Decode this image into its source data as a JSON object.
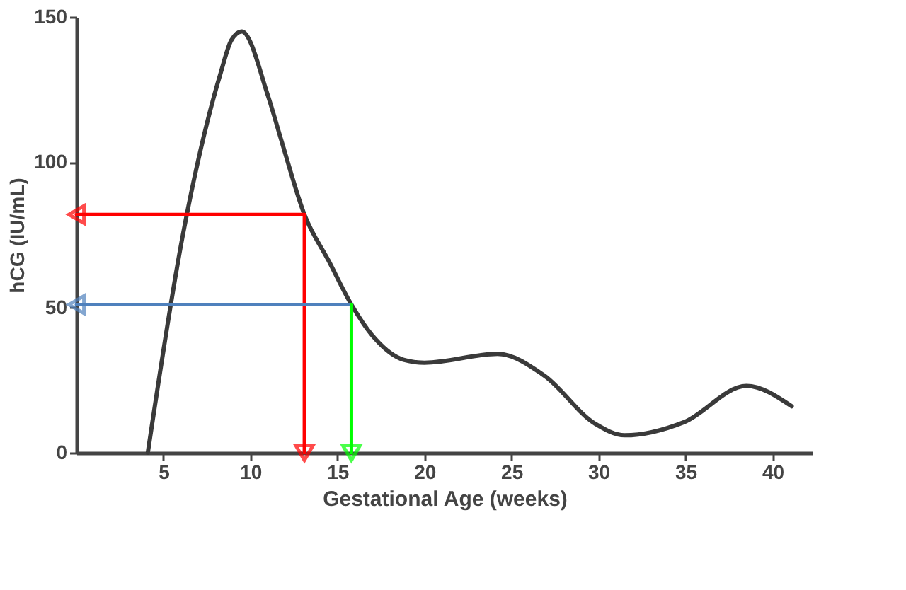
{
  "chart_data": {
    "type": "line",
    "xlabel": "Gestational Age (weeks)",
    "ylabel": "hCG (IU/mL)",
    "xlim": [
      0,
      42.3
    ],
    "xticks": [
      5,
      10,
      15,
      20,
      25,
      30,
      35,
      40
    ],
    "ylim": [
      0,
      150
    ],
    "yticks": [
      0,
      50,
      100,
      150
    ],
    "grid": false,
    "line_style": "solid",
    "series": [
      {
        "color": "#3a3a3a",
        "x": [
          4.1,
          6.1,
          8.3,
          8.9,
          9.5,
          11,
          11.8,
          13.1,
          14.5,
          15.8,
          17.2,
          18.8,
          20,
          24.2,
          26.9,
          29.8,
          31.5,
          34.9,
          38.5,
          41.1
        ],
        "values": [
          0,
          74.5,
          131,
          142,
          145,
          123,
          107,
          82,
          66,
          51,
          39,
          32,
          31,
          34,
          26.5,
          10,
          6,
          10.5,
          23,
          16
        ]
      },
      {
        "color": "#ff0000",
        "x": [
          13.1,
          0
        ],
        "values": [
          82,
          82
        ]
      },
      {
        "color": "#ff0000",
        "x": [
          13.1,
          13.1
        ],
        "values": [
          82,
          0
        ]
      },
      {
        "color": "#4f81bd",
        "x": [
          15.8,
          0
        ],
        "values": [
          51,
          51
        ]
      },
      {
        "color": "#00ff00",
        "x": [
          15.8,
          15.8
        ],
        "values": [
          51,
          0
        ]
      }
    ]
  }
}
